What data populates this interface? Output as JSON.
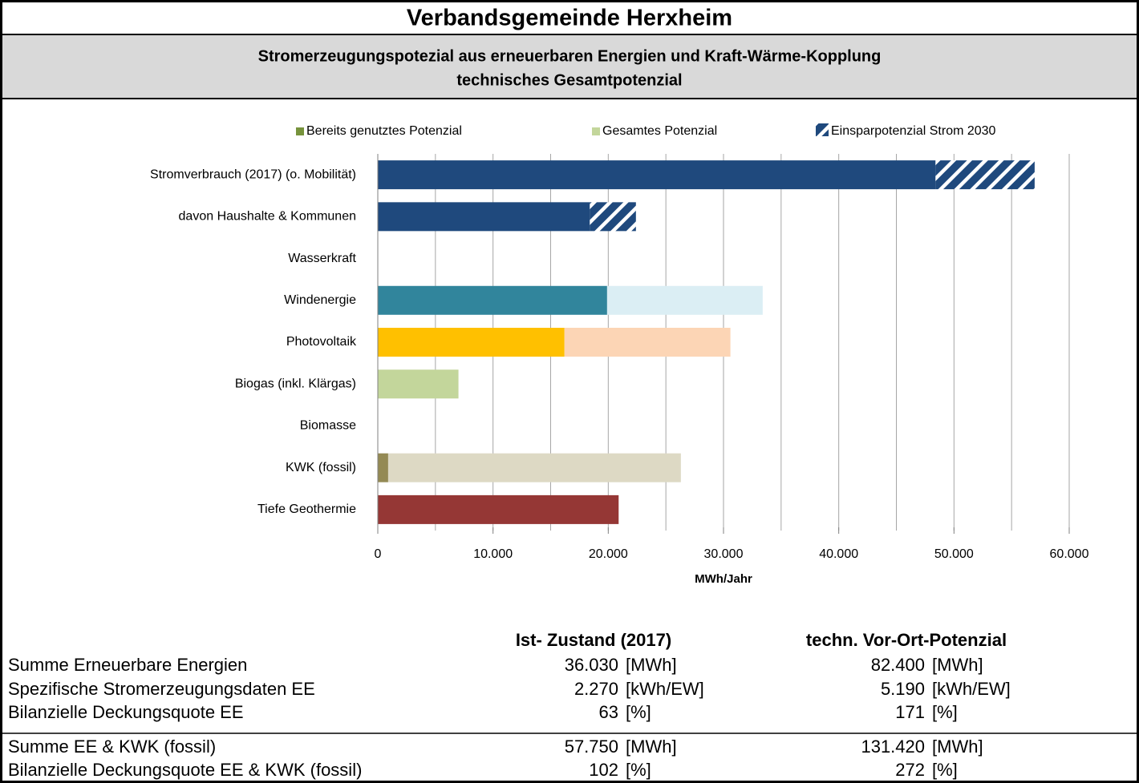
{
  "chart_data": {
    "type": "stacked_barh",
    "title": "Verbandsgemeinde Herxheim",
    "subtitle": [
      "Stromerzeugungspotezial aus erneuerbaren Energien und Kraft-Wärme-Kopplung",
      "technisches Gesamtpotenzial"
    ],
    "categories": [
      "Stromverbrauch (2017) (o. Mobilität)",
      "davon Haushalte & Kommunen",
      "Wasserkraft",
      "Windenergie",
      "Photovoltaik",
      "Biogas (inkl. Klärgas)",
      "Biomasse",
      "KWK (fossil)",
      "Tiefe Geothermie"
    ],
    "series": [
      {
        "name": "Bereits genutztes Potenzial",
        "color": "#77933c",
        "colors": [
          "#1f497d",
          "#1f497d",
          null,
          "#31859c",
          "#ffc000",
          null,
          null,
          "#948a54",
          null
        ],
        "values": [
          48400,
          18400,
          null,
          19900,
          16200,
          null,
          null,
          900,
          null
        ]
      },
      {
        "name": "Gesamtes Potenzial",
        "color": "#c3d69b",
        "colors": [
          null,
          null,
          null,
          "#dbeef4",
          "#fcd5b5",
          "#c3d69b",
          null,
          "#ddd9c4",
          "#953735"
        ],
        "values": [
          null,
          null,
          null,
          13500,
          14400,
          7000,
          null,
          25400,
          20900
        ]
      },
      {
        "name": "Einsparpotenzial Strom 2030",
        "color": "#1f497d",
        "pattern": "hatch",
        "values": [
          8600,
          4000,
          null,
          null,
          null,
          null,
          null,
          null,
          null
        ]
      }
    ],
    "xlabel": "MWh/Jahr",
    "xlim": [
      0,
      60000
    ],
    "xticks": [
      0,
      {
        "value": 10000,
        "label": "10.000"
      },
      {
        "value": 20000,
        "label": "20.000"
      },
      {
        "value": 30000,
        "label": "30.000"
      },
      {
        "value": 40000,
        "label": "40.000"
      },
      {
        "value": 50000,
        "label": "50.000"
      },
      {
        "value": 60000,
        "label": "60.000"
      }
    ],
    "grid_lines": [
      5000,
      10000,
      15000,
      20000,
      25000,
      30000,
      35000,
      40000,
      45000,
      50000,
      55000,
      60000
    ],
    "grid": true,
    "legend": "top"
  },
  "table": {
    "headers": [
      "Ist- Zustand (2017)",
      "techn. Vor-Ort-Potenzial"
    ],
    "rows": [
      [
        "Summe Erneuerbare Energien",
        "36.030",
        "[MWh]",
        "82.400",
        "[MWh]"
      ],
      [
        "Spezifische Stromerzeugungsdaten EE",
        "2.270",
        "[kWh/EW]",
        "5.190",
        "[kWh/EW]"
      ],
      [
        "Bilanzielle Deckungsquote EE",
        "63",
        "[%]",
        "171",
        "[%]"
      ],
      [
        "Summe EE & KWK (fossil)",
        "57.750",
        "[MWh]",
        "131.420",
        "[MWh]"
      ],
      [
        "Bilanzielle Deckungsquote EE & KWK (fossil)",
        "102",
        "[%]",
        "272",
        "[%]"
      ]
    ]
  }
}
